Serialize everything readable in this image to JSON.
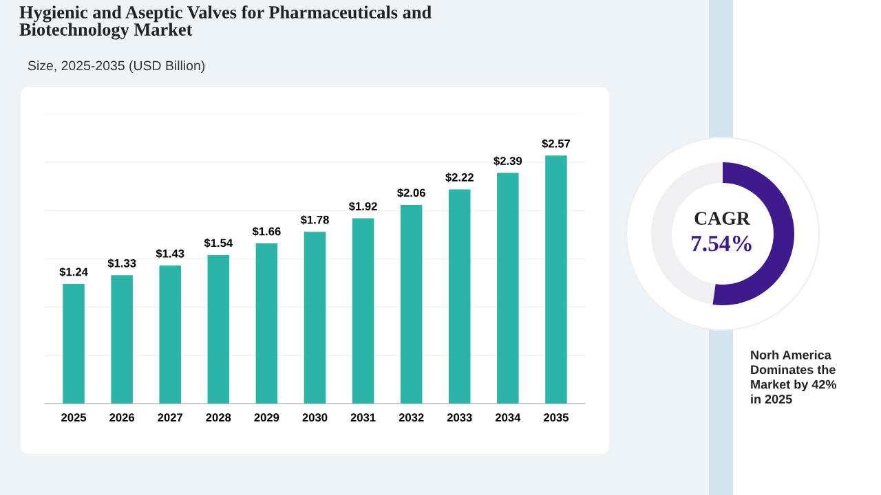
{
  "chart_data": {
    "type": "bar",
    "title": "Hygienic and Aseptic Valves for Pharmaceuticals and\nBiotechnology Market",
    "subtitle": "Size, 2025-2035 (USD Billion)",
    "categories": [
      "2025",
      "2026",
      "2027",
      "2028",
      "2029",
      "2030",
      "2031",
      "2032",
      "2033",
      "2034",
      "2035"
    ],
    "values": [
      1.24,
      1.33,
      1.43,
      1.54,
      1.66,
      1.78,
      1.92,
      2.06,
      2.22,
      2.39,
      2.57
    ],
    "value_labels": [
      "$1.24",
      "$1.33",
      "$1.43",
      "$1.54",
      "$1.66",
      "$1.78",
      "$1.92",
      "$2.06",
      "$2.22",
      "$2.39",
      "$2.57"
    ],
    "color": "#2bb5a8",
    "ylim": [
      0,
      3
    ],
    "yticks": [
      {
        "value": 0,
        "label": null
      },
      {
        "value": 0.5,
        "label": null
      },
      {
        "value": 1,
        "label": null
      },
      {
        "value": 1.5,
        "label": null
      },
      {
        "value": 2,
        "label": null
      },
      {
        "value": 2.5,
        "label": null
      },
      {
        "value": 3,
        "label": null
      }
    ],
    "tick_labels": "x",
    "grid": "y",
    "annotations": [
      "CAGR",
      "7.54%",
      "Norh America\nDominates the\nMarket by 42%\nin 2025"
    ]
  }
}
